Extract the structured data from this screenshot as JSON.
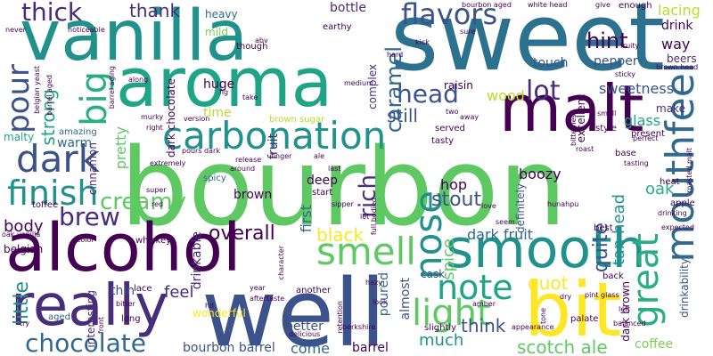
{
  "words": [
    {
      "id": "bourbon",
      "text": "bourbon",
      "color": "#5ec962"
    },
    {
      "id": "sweet",
      "text": "sweet",
      "color": "#2c728e"
    },
    {
      "id": "vanilla",
      "text": "vanilla",
      "color": "#21918c"
    },
    {
      "id": "aroma",
      "text": "aroma",
      "color": "#20a486"
    },
    {
      "id": "alcohol",
      "text": "alcohol",
      "color": "#440154"
    },
    {
      "id": "well",
      "text": "well",
      "color": "#3b528b"
    },
    {
      "id": "malt",
      "text": "malt",
      "color": "#440154"
    },
    {
      "id": "smooth",
      "text": "smooth",
      "color": "#21918c"
    },
    {
      "id": "really",
      "text": "really",
      "color": "#472d7b"
    },
    {
      "id": "bit",
      "text": "bit",
      "color": "#fde725"
    },
    {
      "id": "mouthfeel",
      "text": "mouthfeel",
      "color": "#31688e"
    },
    {
      "id": "carbonation",
      "text": "carbonation",
      "color": "#21918c"
    },
    {
      "id": "great",
      "text": "great",
      "color": "#28ae80"
    },
    {
      "id": "flavors",
      "text": "flavors",
      "color": "#3b528b"
    },
    {
      "id": "smell",
      "text": "smell",
      "color": "#5ec962"
    },
    {
      "id": "nose",
      "text": "nose",
      "color": "#21918c"
    },
    {
      "id": "dark",
      "text": "dark",
      "color": "#3b528b"
    },
    {
      "id": "note",
      "text": "note",
      "color": "#20a486"
    },
    {
      "id": "light",
      "text": "light",
      "color": "#5ec962"
    },
    {
      "id": "finish",
      "text": "finish",
      "color": "#21918c"
    },
    {
      "id": "pour",
      "text": "pour",
      "color": "#3b528b"
    },
    {
      "id": "big",
      "text": "big",
      "color": "#28ae80"
    },
    {
      "id": "head",
      "text": "head",
      "color": "#3b528b"
    },
    {
      "id": "chocolate",
      "text": "chocolate",
      "color": "#31688e"
    },
    {
      "id": "thick",
      "text": "thick",
      "color": "#472d7b"
    },
    {
      "id": "brew",
      "text": "brew",
      "color": "#472d7b"
    },
    {
      "id": "hint",
      "text": "hint",
      "color": "#440154"
    },
    {
      "id": "lot",
      "text": "lot",
      "color": "#472d7b"
    },
    {
      "id": "creamy",
      "text": "creamy",
      "color": "#5ec962"
    },
    {
      "id": "overall",
      "text": "overall",
      "color": "#440154"
    },
    {
      "id": "rich",
      "text": "rich",
      "color": "#472d7b"
    },
    {
      "id": "caramel",
      "text": "caramel",
      "color": "#31688e"
    },
    {
      "id": "black",
      "text": "black",
      "color": "#fde725"
    },
    {
      "id": "stout",
      "text": "stout",
      "color": "#3b528b"
    },
    {
      "id": "quot",
      "text": "quot",
      "color": "#fde725"
    },
    {
      "id": "body",
      "text": "body",
      "color": "#440154"
    },
    {
      "id": "much",
      "text": "much",
      "color": "#21918c"
    },
    {
      "id": "think",
      "text": "think",
      "color": "#3b528b"
    },
    {
      "id": "scotch-ale",
      "text": "scotch ale",
      "color": "#5ec962"
    },
    {
      "id": "bourbon-barrel",
      "text": "bourbon barrel",
      "color": "#3b528b"
    },
    {
      "id": "come",
      "text": "come",
      "color": "#31688e"
    },
    {
      "id": "barrel",
      "text": "barrel",
      "color": "#440154"
    },
    {
      "id": "dark-fruit",
      "text": "dark fruit",
      "color": "#31688e"
    },
    {
      "id": "quite",
      "text": "quite",
      "color": "#3b528b"
    },
    {
      "id": "thank",
      "text": "thank",
      "color": "#472d7b"
    },
    {
      "id": "strong",
      "text": "strong",
      "color": "#20a486"
    },
    {
      "id": "little",
      "text": "little",
      "color": "#21918c"
    },
    {
      "id": "still",
      "text": "still",
      "color": "#3b528b"
    },
    {
      "id": "sweetness",
      "text": "sweetness",
      "color": "#3b528b"
    },
    {
      "id": "wood",
      "text": "wood",
      "color": "#b5de2b"
    },
    {
      "id": "glass",
      "text": "glass",
      "color": "#20a486"
    },
    {
      "id": "tan-head",
      "text": "tan head",
      "color": "#21918c"
    },
    {
      "id": "spice",
      "text": "spice",
      "color": "#5ec962"
    },
    {
      "id": "poured",
      "text": "poured",
      "color": "#31688e"
    },
    {
      "id": "pretty",
      "text": "pretty",
      "color": "#5ec962"
    },
    {
      "id": "warm",
      "text": "warm",
      "color": "#31688e"
    },
    {
      "id": "cinnamon",
      "text": "cinnamon",
      "color": "#472d7b"
    },
    {
      "id": "fruit",
      "text": "fruit",
      "color": "#472d7b"
    },
    {
      "id": "first",
      "text": "first",
      "color": "#31688e"
    },
    {
      "id": "brown",
      "text": "brown",
      "color": "#440154"
    },
    {
      "id": "oak",
      "text": "oak",
      "color": "#28ae80"
    },
    {
      "id": "hop",
      "text": "hop",
      "color": "#440154"
    },
    {
      "id": "deep",
      "text": "deep",
      "color": "#440154"
    },
    {
      "id": "boozy",
      "text": "boozy",
      "color": "#440154"
    },
    {
      "id": "way",
      "text": "way",
      "color": "#440154"
    },
    {
      "id": "beers",
      "text": "beers",
      "color": "#472d7b"
    },
    {
      "id": "lacing",
      "text": "lacing",
      "color": "#b5de2b"
    },
    {
      "id": "drink",
      "text": "drink",
      "color": "#440154"
    },
    {
      "id": "pepper",
      "text": "pepper",
      "color": "#3b528b"
    },
    {
      "id": "touch",
      "text": "touch",
      "color": "#3b528b"
    },
    {
      "id": "make",
      "text": "make",
      "color": "#472d7b"
    },
    {
      "id": "time",
      "text": "time",
      "color": "#b5de2b"
    },
    {
      "id": "huge",
      "text": "huge",
      "color": "#440154"
    },
    {
      "id": "mild",
      "text": "mild",
      "color": "#7ad151"
    },
    {
      "id": "heavy",
      "text": "heavy",
      "color": "#31688e"
    },
    {
      "id": "bottle",
      "text": "bottle",
      "color": "#472d7b"
    },
    {
      "id": "malty",
      "text": "malty",
      "color": "#20a486"
    },
    {
      "id": "dark-chocolate",
      "text": "dark chocolate",
      "color": "#440154"
    },
    {
      "id": "amazing",
      "text": "amazing",
      "color": "#31688e"
    },
    {
      "id": "feel",
      "text": "feel",
      "color": "#472d7b"
    },
    {
      "id": "thin",
      "text": "thin",
      "color": "#3b528b"
    },
    {
      "id": "wonderful",
      "text": "wonderful",
      "color": "#fde725"
    },
    {
      "id": "almost",
      "text": "almost",
      "color": "#3b528b"
    },
    {
      "id": "better",
      "text": "better",
      "color": "#3b528b"
    },
    {
      "id": "drinkable",
      "text": "drinkable",
      "color": "#472d7b"
    },
    {
      "id": "drinkability",
      "text": "drinkability",
      "color": "#3b528b"
    },
    {
      "id": "excellent",
      "text": "excellent",
      "color": "#440154"
    },
    {
      "id": "definitely",
      "text": "definitely",
      "color": "#3b528b"
    },
    {
      "id": "complex",
      "text": "complex",
      "color": "#472d7b"
    },
    {
      "id": "raisin",
      "text": "raisin",
      "color": "#440154"
    },
    {
      "id": "cask",
      "text": "cask",
      "color": "#3b528b"
    },
    {
      "id": "coffee",
      "text": "coffee",
      "color": "#7ad151"
    },
    {
      "id": "dark-brown",
      "text": "dark brown",
      "color": "#440154"
    },
    {
      "id": "interesting",
      "text": "interesting",
      "color": "#472d7b"
    },
    {
      "id": "belgian",
      "text": "belgian",
      "color": "#440154"
    },
    {
      "id": "toffee",
      "text": "toffee",
      "color": "#440154"
    },
    {
      "id": "aged",
      "text": "aged",
      "color": "#31688e"
    },
    {
      "id": "spicy",
      "text": "spicy",
      "color": "#31688e"
    },
    {
      "id": "brown-sugar",
      "text": "brown sugar",
      "color": "#b5de2b"
    },
    {
      "id": "tasty",
      "text": "tasty",
      "color": "#440154"
    },
    {
      "id": "served",
      "text": "served",
      "color": "#440154"
    },
    {
      "id": "best",
      "text": "best",
      "color": "#440154"
    },
    {
      "id": "apple",
      "text": "apple",
      "color": "#440154"
    },
    {
      "id": "heat",
      "text": "heat",
      "color": "#440154"
    },
    {
      "id": "present",
      "text": "present",
      "color": "#440154"
    },
    {
      "id": "style",
      "text": "style",
      "color": "#440154"
    },
    {
      "id": "base",
      "text": "base",
      "color": "#440154"
    },
    {
      "id": "whiskey",
      "text": "whiskey",
      "color": "#440154"
    },
    {
      "id": "earthy",
      "text": "earthy",
      "color": "#440154"
    },
    {
      "id": "though",
      "text": "though",
      "color": "#440154"
    },
    {
      "id": "enough",
      "text": "enough",
      "color": "#440154"
    },
    {
      "id": "slightly",
      "text": "slightly",
      "color": "#440154"
    },
    {
      "id": "palate",
      "text": "palate",
      "color": "#440154"
    },
    {
      "id": "start",
      "text": "start",
      "color": "#440154"
    },
    {
      "id": "lace",
      "text": "lace",
      "color": "#440154"
    },
    {
      "id": "another",
      "text": "another",
      "color": "#440154"
    },
    {
      "id": "long",
      "text": "long",
      "color": "#440154"
    },
    {
      "id": "back",
      "text": "back",
      "color": "#440154"
    },
    {
      "id": "sure",
      "text": "sure",
      "color": "#440154"
    },
    {
      "id": "small",
      "text": "small",
      "color": "#440154"
    },
    {
      "id": "tasting",
      "text": "tasting",
      "color": "#440154"
    },
    {
      "id": "finger",
      "text": "finger",
      "color": "#440154"
    },
    {
      "id": "version",
      "text": "version",
      "color": "#440154"
    },
    {
      "id": "character",
      "text": "character",
      "color": "#440154"
    },
    {
      "id": "full-bodied",
      "text": "full bodied",
      "color": "#440154"
    },
    {
      "id": "expected",
      "text": "expected",
      "color": "#440154"
    },
    {
      "id": "noticeable",
      "text": "noticeable",
      "color": "#440154"
    },
    {
      "id": "belgian-yeast",
      "text": "belgian yeast",
      "color": "#440154"
    },
    {
      "id": "barrel-aged",
      "text": "barrel aged",
      "color": "#440154"
    },
    {
      "id": "barrel-aging",
      "text": "barrel aging",
      "color": "#440154"
    },
    {
      "id": "oak-vanilla",
      "text": "oak vanilla",
      "color": "#440154"
    },
    {
      "id": "along",
      "text": "along",
      "color": "#440154"
    },
    {
      "id": "around",
      "text": "around",
      "color": "#440154"
    },
    {
      "id": "extremely",
      "text": "extremely",
      "color": "#440154"
    },
    {
      "id": "super",
      "text": "super",
      "color": "#440154"
    },
    {
      "id": "pours-dark",
      "text": "pours dark",
      "color": "#440154"
    },
    {
      "id": "color",
      "text": "color",
      "color": "#440154"
    },
    {
      "id": "year",
      "text": "year",
      "color": "#440154"
    },
    {
      "id": "hit",
      "text": "hit",
      "color": "#440154"
    },
    {
      "id": "front",
      "text": "front",
      "color": "#440154"
    },
    {
      "id": "retention",
      "text": "retention",
      "color": "#440154"
    },
    {
      "id": "hazy",
      "text": "hazy",
      "color": "#440154"
    },
    {
      "id": "look",
      "text": "look",
      "color": "#440154"
    },
    {
      "id": "berkshire",
      "text": "berkshire",
      "color": "#440154"
    },
    {
      "id": "appearance",
      "text": "appearance",
      "color": "#440154"
    },
    {
      "id": "pint-glass",
      "text": "pint glass",
      "color": "#440154"
    },
    {
      "id": "tone",
      "text": "tone",
      "color": "#440154"
    },
    {
      "id": "dry",
      "text": "dry",
      "color": "#440154"
    },
    {
      "id": "left",
      "text": "left",
      "color": "#440154"
    },
    {
      "id": "balanced",
      "text": "balanced",
      "color": "#440154"
    },
    {
      "id": "roast",
      "text": "roast",
      "color": "#440154"
    },
    {
      "id": "hunahpu",
      "text": "hunahpu",
      "color": "#440154"
    },
    {
      "id": "love",
      "text": "love",
      "color": "#440154"
    },
    {
      "id": "seem",
      "text": "seem",
      "color": "#440154"
    },
    {
      "id": "let",
      "text": "let",
      "color": "#440154"
    },
    {
      "id": "sipper",
      "text": "sipper",
      "color": "#440154"
    },
    {
      "id": "last",
      "text": "last",
      "color": "#440154"
    },
    {
      "id": "ale",
      "text": "ale",
      "color": "#440154"
    },
    {
      "id": "fig",
      "text": "fig",
      "color": "#440154"
    },
    {
      "id": "take",
      "text": "take",
      "color": "#440154"
    },
    {
      "id": "medium",
      "text": "medium",
      "color": "#440154"
    },
    {
      "id": "kick",
      "text": "kick",
      "color": "#440154"
    },
    {
      "id": "hard",
      "text": "hard",
      "color": "#440154"
    },
    {
      "id": "two",
      "text": "two",
      "color": "#440154"
    },
    {
      "id": "away",
      "text": "away",
      "color": "#440154"
    },
    {
      "id": "fruity",
      "text": "fruity",
      "color": "#440154"
    },
    {
      "id": "sticky",
      "text": "sticky",
      "color": "#440154"
    },
    {
      "id": "bitterness",
      "text": "bitterness",
      "color": "#440154"
    },
    {
      "id": "perfect",
      "text": "perfect",
      "color": "#440154"
    },
    {
      "id": "give",
      "text": "give",
      "color": "#440154"
    },
    {
      "id": "white-head",
      "text": "white head",
      "color": "#440154"
    },
    {
      "id": "bourbon-aged",
      "text": "bourbon aged",
      "color": "#440154"
    },
    {
      "id": "never",
      "text": "never",
      "color": "#440154"
    },
    {
      "id": "murky",
      "text": "murky",
      "color": "#440154"
    },
    {
      "id": "right",
      "text": "right",
      "color": "#440154"
    },
    {
      "id": "bitter",
      "text": "bitter",
      "color": "#440154"
    },
    {
      "id": "red",
      "text": "red",
      "color": "#440154"
    },
    {
      "id": "abv",
      "text": "abv",
      "color": "#440154"
    },
    {
      "id": "release",
      "text": "release",
      "color": "#440154"
    },
    {
      "id": "roasted-malt",
      "text": "roasted malt",
      "color": "#440154"
    },
    {
      "id": "brown-head",
      "text": "brown head",
      "color": "#440154"
    },
    {
      "id": "aftertaste",
      "text": "aftertaste",
      "color": "#440154"
    },
    {
      "id": "delicious",
      "text": "delicious",
      "color": "#440154"
    },
    {
      "id": "amber",
      "text": "amber",
      "color": "#440154"
    },
    {
      "id": "drinking",
      "text": "drinking",
      "color": "#440154"
    },
    {
      "id": "try",
      "text": "try",
      "color": "#440154"
    }
  ]
}
